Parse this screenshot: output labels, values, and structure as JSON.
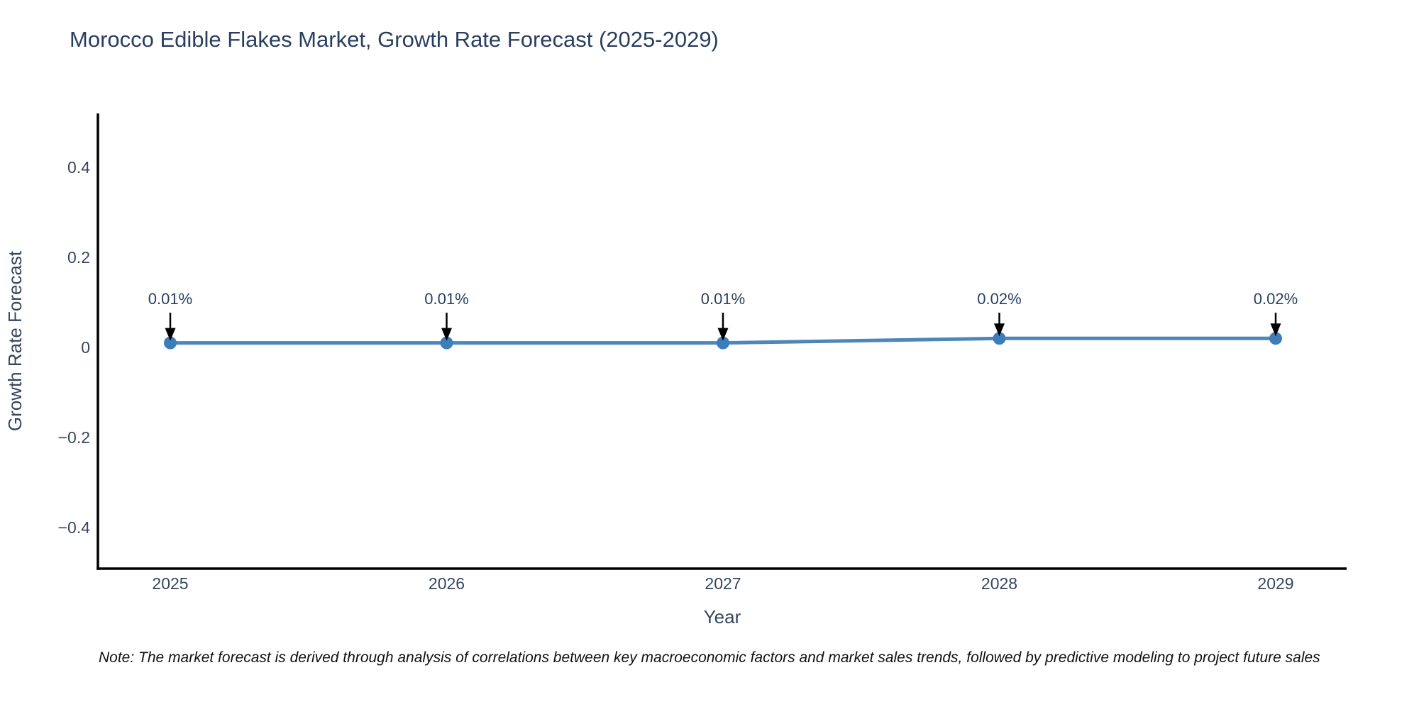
{
  "header": {
    "title": "Morocco Edible Flakes Market, Growth Rate Forecast (2025-2029)"
  },
  "footer": {
    "note": "Note: The market forecast is derived through analysis of correlations between key macroeconomic factors and market sales trends, followed by predictive modeling to project future sales"
  },
  "colors": {
    "title_text": "#2a3f5f",
    "tick_text": "#36455e",
    "axis_line": "#000000",
    "series_line": "#4d86b8",
    "marker_fill": "#3d7eba",
    "annotation_text": "#2a3f5f",
    "annotation_arrow": "#000000",
    "background": "#ffffff"
  },
  "chart_data": {
    "type": "line",
    "title": "Morocco Edible Flakes Market, Growth Rate Forecast (2025-2029)",
    "xlabel": "Year",
    "ylabel": "Growth Rate Forecast",
    "categories": [
      "2025",
      "2026",
      "2027",
      "2028",
      "2029"
    ],
    "values": [
      0.01,
      0.01,
      0.01,
      0.02,
      0.02
    ],
    "point_labels": [
      "0.01%",
      "0.01%",
      "0.01%",
      "0.02%",
      "0.02%"
    ],
    "yticks": [
      {
        "label": "−0.4",
        "value": -0.4
      },
      {
        "label": "−0.2",
        "value": -0.2
      },
      {
        "label": "0",
        "value": 0
      },
      {
        "label": "0.2",
        "value": 0.2
      },
      {
        "label": "0.4",
        "value": 0.4
      }
    ],
    "ylim": [
      -0.505,
      0.52
    ],
    "grid": false,
    "legend": "none",
    "marker_shape": "circle",
    "annotation_style": "label-with-down-arrow"
  }
}
